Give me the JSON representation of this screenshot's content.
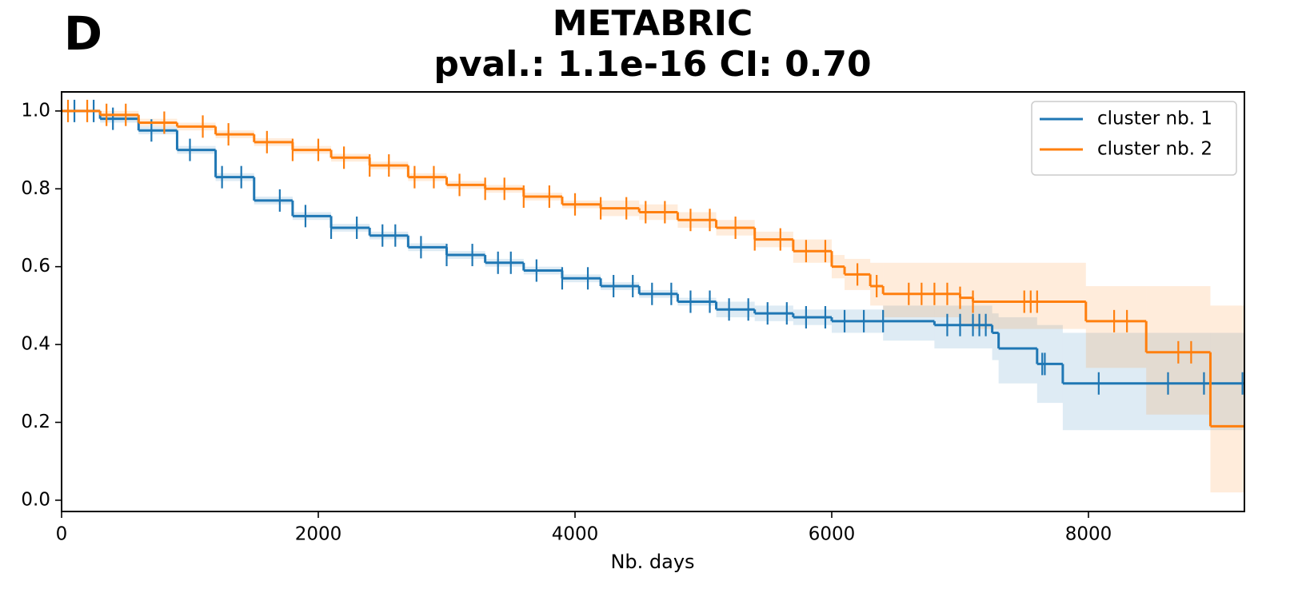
{
  "chart_data": {
    "type": "survival",
    "panel_label": "D",
    "title": "METABRIC",
    "subtitle": "pval.:  1.1e-16 CI:  0.70",
    "xlabel": "Nb. days",
    "xlim": [
      0,
      9215
    ],
    "ylim": [
      -0.029,
      1.049
    ],
    "xticks": [
      0,
      2000,
      4000,
      6000,
      8000
    ],
    "yticks": [
      {
        "value": 0,
        "label": "0.0"
      },
      0.2,
      0.4,
      0.6,
      0.8,
      {
        "value": 1,
        "label": "1.0"
      }
    ],
    "legend": "upper right",
    "series": [
      {
        "name": "cluster nb. 1",
        "color": "#1f77b4",
        "x": [
          0,
          300,
          600,
          900,
          1200,
          1500,
          1800,
          2100,
          2400,
          2700,
          3000,
          3300,
          3600,
          3900,
          4200,
          4500,
          4800,
          5100,
          5400,
          5700,
          6000,
          6400,
          6800,
          7250,
          7300,
          7600,
          7800,
          9215
        ],
        "values": [
          1.0,
          0.98,
          0.95,
          0.9,
          0.83,
          0.77,
          0.73,
          0.7,
          0.68,
          0.65,
          0.63,
          0.61,
          0.59,
          0.57,
          0.55,
          0.53,
          0.51,
          0.49,
          0.48,
          0.47,
          0.46,
          0.46,
          0.45,
          0.43,
          0.39,
          0.35,
          0.3,
          0.3
        ],
        "ci_lower": [
          1.0,
          0.97,
          0.94,
          0.89,
          0.82,
          0.76,
          0.72,
          0.69,
          0.67,
          0.64,
          0.62,
          0.6,
          0.58,
          0.56,
          0.54,
          0.52,
          0.5,
          0.47,
          0.46,
          0.45,
          0.43,
          0.41,
          0.39,
          0.36,
          0.3,
          0.25,
          0.18,
          0.18
        ],
        "ci_upper": [
          1.0,
          0.99,
          0.96,
          0.91,
          0.84,
          0.78,
          0.74,
          0.71,
          0.69,
          0.66,
          0.64,
          0.62,
          0.6,
          0.58,
          0.56,
          0.54,
          0.52,
          0.51,
          0.5,
          0.49,
          0.49,
          0.5,
          0.5,
          0.48,
          0.47,
          0.45,
          0.43,
          0.43
        ],
        "censored": [
          100,
          250,
          400,
          700,
          1000,
          1250,
          1400,
          1700,
          1900,
          2100,
          2300,
          2500,
          2600,
          2800,
          3000,
          3200,
          3400,
          3500,
          3700,
          3900,
          4100,
          4300,
          4450,
          4600,
          4750,
          4900,
          5050,
          5200,
          5350,
          5500,
          5650,
          5800,
          5950,
          6100,
          6250,
          6400,
          6900,
          7000,
          7100,
          7150,
          7200,
          7640,
          7660,
          8080,
          8620,
          8900,
          8950,
          9200
        ]
      },
      {
        "name": "cluster nb. 2",
        "color": "#ff7f0e",
        "x": [
          0,
          300,
          600,
          900,
          1200,
          1500,
          1800,
          2100,
          2400,
          2700,
          3000,
          3300,
          3600,
          3900,
          4200,
          4500,
          4800,
          5100,
          5400,
          5700,
          6000,
          6100,
          6300,
          6400,
          7000,
          7100,
          7980,
          8450,
          8950,
          9215
        ],
        "values": [
          1.0,
          0.99,
          0.97,
          0.96,
          0.94,
          0.92,
          0.9,
          0.88,
          0.86,
          0.83,
          0.81,
          0.8,
          0.78,
          0.76,
          0.75,
          0.74,
          0.72,
          0.7,
          0.67,
          0.64,
          0.6,
          0.58,
          0.55,
          0.53,
          0.52,
          0.51,
          0.46,
          0.38,
          0.19,
          0.19
        ],
        "ci_lower": [
          1.0,
          0.98,
          0.96,
          0.95,
          0.93,
          0.91,
          0.89,
          0.87,
          0.85,
          0.82,
          0.8,
          0.79,
          0.77,
          0.75,
          0.73,
          0.72,
          0.7,
          0.68,
          0.65,
          0.61,
          0.57,
          0.54,
          0.5,
          0.47,
          0.45,
          0.44,
          0.34,
          0.22,
          0.02,
          0.02
        ],
        "ci_upper": [
          1.0,
          1.0,
          0.98,
          0.97,
          0.95,
          0.93,
          0.91,
          0.89,
          0.87,
          0.84,
          0.82,
          0.81,
          0.79,
          0.77,
          0.77,
          0.76,
          0.74,
          0.72,
          0.69,
          0.67,
          0.63,
          0.62,
          0.61,
          0.61,
          0.61,
          0.61,
          0.55,
          0.55,
          0.5,
          0.5
        ],
        "censored": [
          50,
          200,
          350,
          500,
          800,
          1100,
          1300,
          1600,
          1800,
          2000,
          2200,
          2400,
          2550,
          2750,
          2900,
          3100,
          3300,
          3450,
          3600,
          3800,
          4000,
          4200,
          4400,
          4550,
          4700,
          4900,
          5050,
          5250,
          5400,
          5600,
          5800,
          5950,
          6200,
          6350,
          6600,
          6700,
          6800,
          6900,
          7000,
          7100,
          7500,
          7550,
          7600,
          8200,
          8300,
          8700,
          8800
        ]
      }
    ]
  }
}
